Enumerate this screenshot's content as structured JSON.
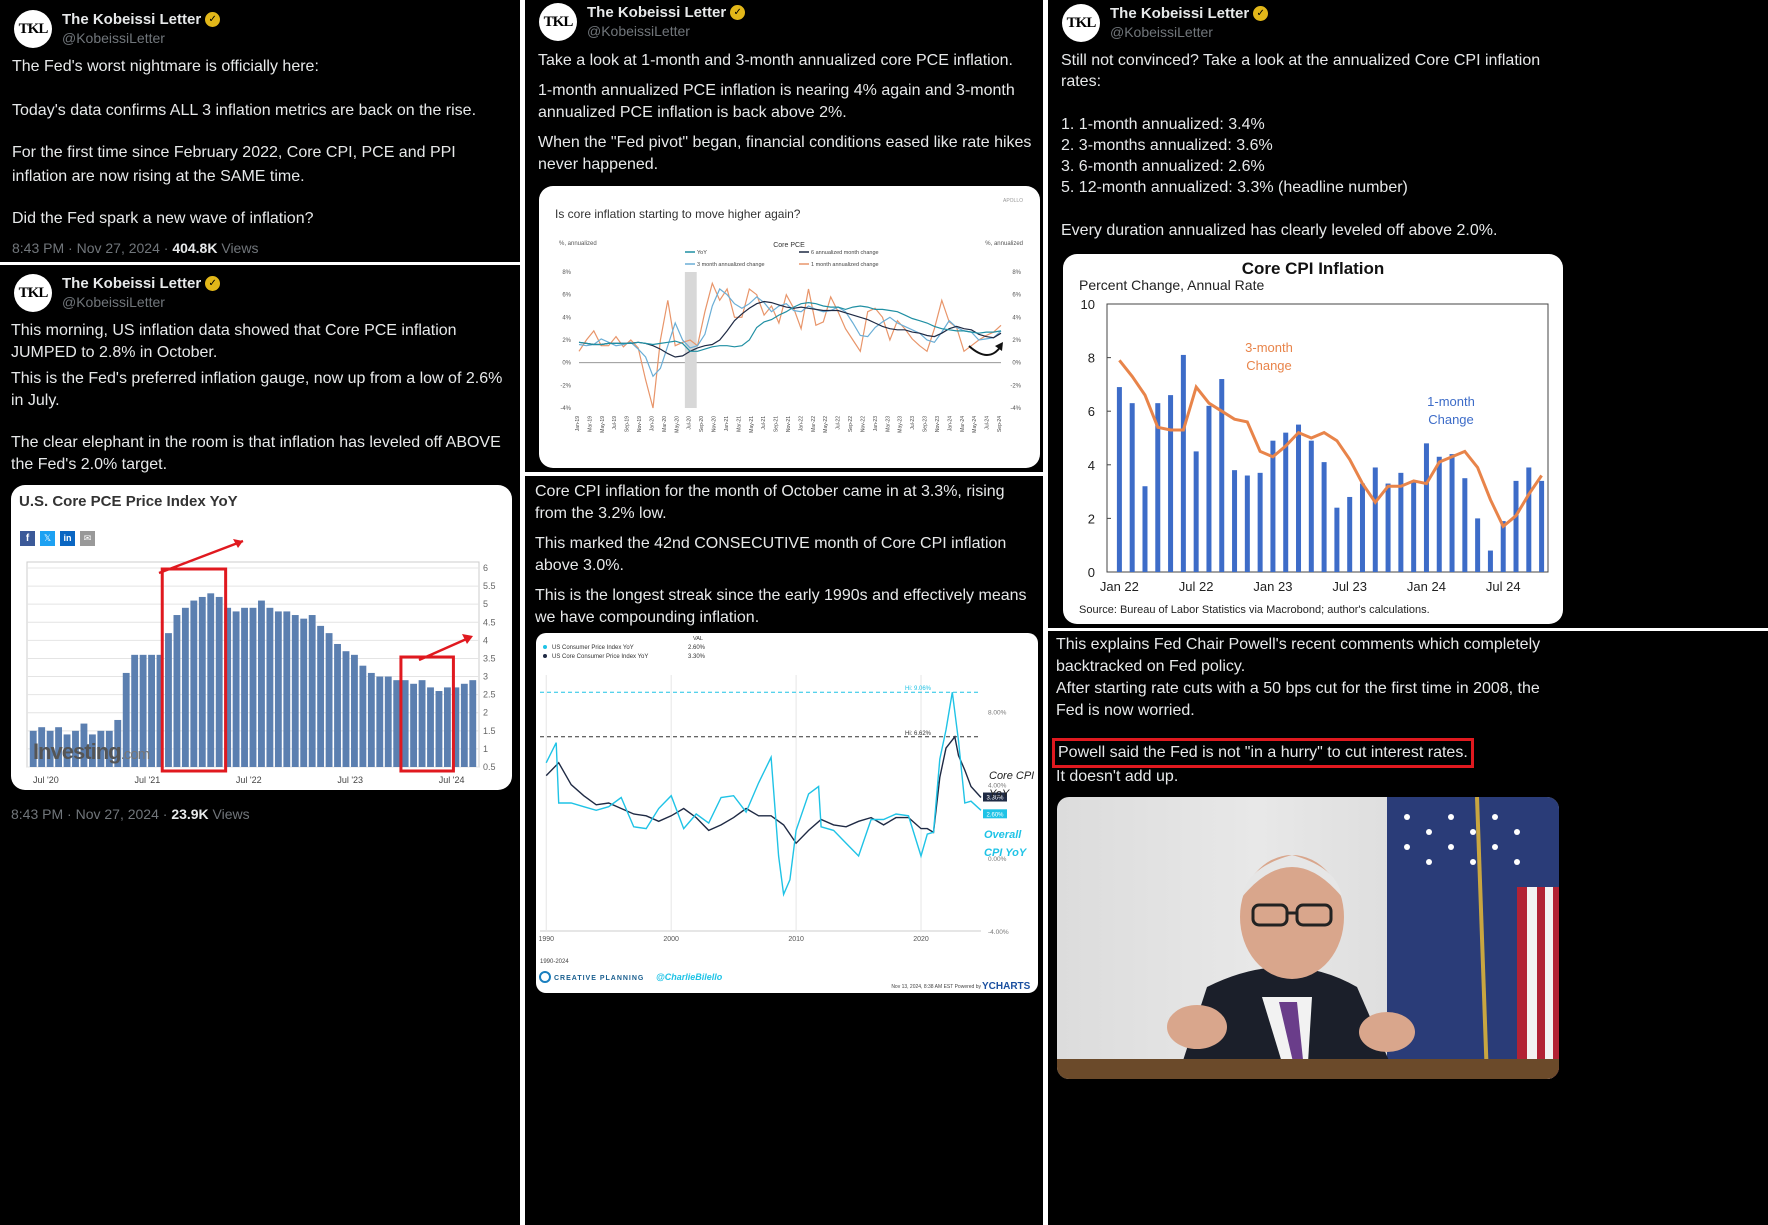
{
  "account": {
    "name": "The Kobeissi Letter",
    "handle": "@KobeissiLetter",
    "avatar_text": "TKL"
  },
  "post1": {
    "lines": [
      "The Fed's worst nightmare is officially here:",
      "Today's data confirms ALL 3 inflation metrics are back on the rise.",
      "For the first time since February 2022, Core CPI, PCE and PPI inflation are now rising at the SAME time.",
      "Did the Fed spark a new wave of inflation?"
    ],
    "timestamp": "8:43 PM · Nov 27, 2024 · ",
    "views_count": "404.8K",
    "views_label": " Views"
  },
  "post2": {
    "lines": [
      "This morning, US inflation data showed that Core PCE inflation JUMPED to 2.8% in October.",
      "This is the Fed's preferred inflation gauge, now up from a low of 2.6% in July.",
      "The clear elephant in the room is that inflation has leveled off ABOVE the Fed's 2.0% target."
    ],
    "timestamp": "8:43 PM · Nov 27, 2024 · ",
    "views_count": "23.9K",
    "views_label": " Views"
  },
  "post3": {
    "lines": [
      "Take a look at 1-month and 3-month annualized core PCE inflation.",
      "1-month annualized PCE inflation is nearing 4% again and 3-month annualized PCE inflation is back above 2%.",
      "When the \"Fed pivot\" began, financial conditions eased like rate hikes never happened."
    ]
  },
  "post4": {
    "lines": [
      "Core CPI inflation for the month of October came in at 3.3%, rising from the 3.2% low.",
      "This marked the 42nd CONSECUTIVE month of Core CPI inflation above 3.0%.",
      "This is the longest streak since the early 1990s and effectively means we have compounding inflation."
    ]
  },
  "post5": {
    "intro": "Still not convinced? Take a look at the annualized Core CPI inflation rates:",
    "list": [
      "1. 1-month annualized: 3.4%",
      "2. 3-months annualized: 3.6%",
      "3. 6-month annualized: 2.6%",
      "5. 12-month annualized: 3.3% (headline number)"
    ],
    "outro": "Every duration annualized has clearly leveled off above 2.0%."
  },
  "post6": {
    "lines": [
      "This explains Fed Chair Powell's recent comments which completely backtracked on Fed policy.",
      "After starting rate cuts with a 50 bps cut for the first time in 2008, the Fed is now worried."
    ],
    "highlight": "Powell said the Fed is not \"in a hurry\" to cut interest rates.",
    "after": "It doesn't add up."
  },
  "colors": {
    "pce_bar": "#5b7fb0",
    "cpi_bar": "#3d6cc8",
    "cpi_line": "#e8844a",
    "red": "#e0191f",
    "cyan": "#1fc3e6",
    "navy": "#1f2a44"
  },
  "chart_data": [
    {
      "id": "pce_yoy",
      "type": "bar",
      "title": "U.S. Core PCE Price Index YoY",
      "share_icons": [
        "f",
        "𝕏",
        "in",
        "✉"
      ],
      "watermark": "Investing",
      "watermark_suffix": ".com",
      "x_ticks": [
        "Jul '20",
        "Jul '21",
        "Jul '22",
        "Jul '23",
        "Jul '24"
      ],
      "y_ticks": [
        "6",
        "5.5",
        "5",
        "4.5",
        "4",
        "3.5",
        "3",
        "2.5",
        "2",
        "1.5",
        "1",
        "0.5"
      ],
      "ylim": [
        0.5,
        6
      ],
      "values": [
        1.5,
        1.6,
        1.5,
        1.6,
        1.4,
        1.5,
        1.7,
        1.4,
        1.5,
        1.5,
        1.8,
        3.1,
        3.6,
        3.6,
        3.6,
        3.6,
        4.2,
        4.7,
        4.9,
        5.1,
        5.2,
        5.3,
        5.2,
        4.9,
        4.8,
        4.9,
        4.9,
        5.1,
        4.9,
        4.8,
        4.8,
        4.7,
        4.6,
        4.7,
        4.4,
        4.2,
        3.9,
        3.7,
        3.6,
        3.3,
        3.1,
        3.0,
        3.0,
        2.9,
        2.9,
        2.8,
        2.9,
        2.7,
        2.6,
        2.7,
        2.7,
        2.8,
        2.9
      ],
      "annotations": [
        "red-arrow",
        "red-box-peak",
        "red-arrow",
        "red-box-recent"
      ]
    },
    {
      "id": "apollo_core_pce",
      "type": "line",
      "title": "Is core inflation starting to move higher again?",
      "brand": "APOLLO",
      "chart_label": "Core PCE",
      "ylabel_left": "%, annualized",
      "ylabel_right": "%, annualized",
      "y_ticks": [
        "8%",
        "6%",
        "4%",
        "2%",
        "0%",
        "-2%",
        "-4%"
      ],
      "ylim": [
        -4,
        8
      ],
      "legend": [
        "YoY",
        "6 annualized month change",
        "3 month annualized change",
        "1 month annualized change"
      ],
      "x_ticks": [
        "Jan-19",
        "Mar-19",
        "May-19",
        "Jul-19",
        "Sep-19",
        "Nov-19",
        "Jan-20",
        "Mar-20",
        "May-20",
        "Jul-20",
        "Sep-20",
        "Nov-20",
        "Jan-21",
        "Mar-21",
        "May-21",
        "Jul-21",
        "Sep-21",
        "Nov-21",
        "Jan-22",
        "Mar-22",
        "May-22",
        "Jul-22",
        "Sep-22",
        "Nov-22",
        "Jan-23",
        "Mar-23",
        "May-23",
        "Jul-23",
        "Sep-23",
        "Nov-23",
        "Jan-24",
        "Mar-24",
        "May-24",
        "Jul-24",
        "Sep-24"
      ],
      "series": [
        {
          "name": "YoY",
          "values": [
            1.8,
            1.7,
            1.6,
            1.6,
            1.7,
            1.7,
            1.7,
            1.7,
            1.8,
            1.7,
            1.6,
            1.7,
            1.8,
            1.9,
            1.7,
            1.0,
            1.0,
            1.2,
            1.4,
            1.5,
            1.5,
            1.4,
            1.5,
            2.0,
            3.1,
            3.6,
            3.8,
            4.2,
            4.5,
            4.9,
            5.2,
            5.3,
            5.2,
            5.0,
            4.9,
            4.9,
            4.7,
            4.9,
            5.0,
            4.9,
            4.7,
            4.7,
            4.6,
            4.5,
            4.2,
            3.9,
            3.7,
            3.5,
            3.2,
            3.0,
            2.9,
            2.8,
            2.8,
            2.7,
            2.6,
            2.7,
            2.7,
            2.8
          ]
        },
        {
          "name": "6 annualized month change",
          "values": [
            1.8,
            1.7,
            1.6,
            1.6,
            1.7,
            1.7,
            1.7,
            1.7,
            1.8,
            1.7,
            1.5,
            1.2,
            0.8,
            0.5,
            0.6,
            1.0,
            1.3,
            1.5,
            1.6,
            2.0,
            2.8,
            3.7,
            4.3,
            4.8,
            5.2,
            5.4,
            5.3,
            5.1,
            4.9,
            4.8,
            4.9,
            4.8,
            4.7,
            4.6,
            4.6,
            4.6,
            4.4,
            4.2,
            4.0,
            3.8,
            3.5,
            3.2,
            3.0,
            2.9,
            2.9,
            2.7,
            2.6,
            2.4,
            2.3,
            2.6,
            3.0,
            3.2,
            3.0,
            2.9,
            2.5,
            2.3,
            2.2,
            2.6
          ]
        },
        {
          "name": "3 month annualized change",
          "values": [
            1.6,
            1.5,
            1.6,
            2.1,
            1.8,
            1.5,
            1.6,
            1.8,
            1.2,
            0.5,
            -1.2,
            -0.5,
            1.5,
            3.5,
            2.0,
            1.3,
            1.5,
            2.5,
            5.0,
            6.5,
            6.0,
            5.2,
            4.8,
            5.2,
            5.8,
            5.3,
            4.5,
            5.0,
            5.2,
            4.6,
            4.5,
            5.0,
            4.7,
            4.5,
            4.6,
            4.9,
            4.5,
            3.5,
            2.4,
            2.3,
            3.1,
            3.6,
            4.0,
            3.5,
            3.2,
            2.9,
            2.6,
            2.0,
            1.8,
            2.7,
            3.7,
            3.1,
            2.8,
            2.7,
            2.0,
            2.1,
            2.2,
            2.8
          ]
        },
        {
          "name": "1 month annualized change",
          "values": [
            1.0,
            2.0,
            2.8,
            1.5,
            1.5,
            2.3,
            1.4,
            2.0,
            1.3,
            -1.5,
            -4.0,
            2.0,
            5.5,
            1.5,
            1.8,
            2.0,
            1.5,
            4.5,
            7.0,
            5.5,
            6.5,
            4.0,
            4.0,
            6.5,
            6.0,
            4.2,
            5.0,
            3.5,
            6.0,
            4.8,
            3.0,
            6.5,
            3.3,
            3.6,
            5.8,
            4.5,
            3.0,
            2.0,
            1.0,
            4.5,
            4.8,
            4.0,
            2.0,
            3.7,
            3.0,
            2.1,
            1.5,
            1.0,
            3.0,
            5.5,
            3.6,
            3.1,
            1.0,
            1.5,
            2.0,
            2.4,
            2.7,
            3.3
          ]
        }
      ]
    },
    {
      "id": "ycharts_cpi",
      "type": "line",
      "legend_header": "VAL",
      "legend": [
        {
          "name": "US Consumer Price Index YoY",
          "value": "2.60%"
        },
        {
          "name": "US Core Consumer Price Index YoY",
          "value": "3.30%"
        }
      ],
      "x_ticks": [
        "1990",
        "2000",
        "2010",
        "2020"
      ],
      "y_ticks": [
        "8.00%",
        "4.00%",
        "0.00%",
        "-4.00%"
      ],
      "ylim": [
        -4,
        10
      ],
      "ref_lines": [
        {
          "label": "Hi: 9.06%",
          "value": 9.06
        },
        {
          "label": "Hi: 6.62%",
          "value": 6.62
        }
      ],
      "end_labels": [
        {
          "text": "3.30%",
          "value": 3.3
        },
        {
          "text": "2.60%",
          "value": 2.6
        }
      ],
      "annot_core": [
        "Core CPI",
        "YoY"
      ],
      "annot_overall": [
        "Overall",
        "CPI YoY"
      ],
      "period": "1990-2024",
      "footer_brand": "CREATIVE PLANNING",
      "footer_handle": "@CharlieBilello",
      "footer_stamp": "Nov 13, 2024, 8:38 AM EST Powered by ",
      "footer_ycharts": "YCHARTS",
      "xrange": [
        1989.5,
        2024.8
      ],
      "series": [
        {
          "name": "US Core Consumer Price Index YoY",
          "x": [
            1990,
            1991,
            1992,
            1993,
            1994,
            1995,
            1996,
            1997,
            1998,
            1999,
            2000,
            2001,
            2002,
            2003,
            2004,
            2005,
            2006,
            2007,
            2008,
            2009,
            2010,
            2011,
            2012,
            2013,
            2014,
            2015,
            2016,
            2017,
            2018,
            2019,
            2020,
            2020.5,
            2021,
            2021.5,
            2022,
            2022.7,
            2023,
            2023.5,
            2024,
            2024.8
          ],
          "values": [
            4.5,
            5.2,
            4.0,
            3.4,
            2.9,
            3.0,
            2.7,
            2.4,
            2.3,
            2.0,
            2.3,
            2.7,
            2.2,
            1.5,
            1.8,
            2.2,
            2.7,
            2.3,
            2.3,
            1.8,
            0.8,
            1.5,
            2.1,
            1.8,
            1.7,
            2.0,
            2.2,
            1.8,
            2.2,
            2.2,
            1.6,
            1.6,
            1.4,
            4.4,
            6.0,
            6.62,
            5.6,
            4.8,
            3.9,
            3.3
          ]
        },
        {
          "name": "US Consumer Price Index YoY",
          "x": [
            1990,
            1990.8,
            1991,
            1992,
            1993,
            1994,
            1995,
            1996,
            1997,
            1998,
            1999,
            2000,
            2001,
            2002,
            2003,
            2004,
            2005,
            2006,
            2007,
            2008,
            2008.6,
            2009,
            2009.5,
            2010,
            2011,
            2011.8,
            2012,
            2013,
            2014,
            2015,
            2016,
            2017,
            2018,
            2019,
            2020,
            2020.5,
            2021,
            2021.5,
            2022,
            2022.5,
            2023,
            2023.5,
            2024,
            2024.8
          ],
          "values": [
            5.2,
            6.3,
            3.0,
            3.0,
            2.8,
            2.6,
            2.8,
            3.3,
            1.7,
            1.6,
            2.7,
            3.4,
            1.6,
            2.4,
            1.9,
            3.3,
            3.4,
            2.5,
            4.1,
            5.5,
            0.1,
            -2.0,
            -1.2,
            1.5,
            3.5,
            3.9,
            1.7,
            1.5,
            0.8,
            0.1,
            2.1,
            2.1,
            2.4,
            2.3,
            0.1,
            1.3,
            1.4,
            5.4,
            7.0,
            9.06,
            6.4,
            3.0,
            3.1,
            2.6
          ]
        }
      ]
    },
    {
      "id": "core_cpi_mom",
      "type": "bar",
      "title": "Core CPI Inflation",
      "subtitle": "Percent Change, Annual Rate",
      "source": "Source: Bureau of Labor Statistics via Macrobond; author's calculations.",
      "x_ticks": [
        "Jan 22",
        "Jul 22",
        "Jan 23",
        "Jul 23",
        "Jan 24",
        "Jul 24"
      ],
      "y_ticks": [
        "10",
        "8",
        "6",
        "4",
        "2",
        "0"
      ],
      "ylim": [
        0,
        10
      ],
      "label_3m": [
        "3-month",
        "Change"
      ],
      "label_1m": [
        "1-month",
        "Change"
      ],
      "series": [
        {
          "name": "1-month Change",
          "values": [
            6.9,
            6.3,
            3.2,
            6.3,
            6.6,
            8.1,
            4.5,
            6.2,
            7.2,
            3.8,
            3.6,
            3.7,
            4.9,
            5.2,
            5.5,
            4.9,
            4.1,
            2.4,
            2.8,
            3.3,
            3.9,
            3.3,
            3.7,
            3.4,
            4.8,
            4.3,
            4.4,
            3.5,
            2.0,
            0.8,
            1.9,
            3.4,
            3.9,
            3.4
          ]
        },
        {
          "name": "3-month Change",
          "values": [
            7.9,
            7.3,
            6.6,
            5.4,
            5.3,
            5.3,
            6.9,
            6.3,
            6.0,
            5.7,
            5.6,
            4.5,
            4.3,
            4.7,
            5.2,
            5.0,
            5.2,
            4.9,
            4.2,
            3.3,
            2.6,
            3.2,
            3.2,
            3.4,
            3.3,
            4.1,
            4.3,
            4.5,
            3.9,
            2.7,
            1.7,
            2.1,
            2.9,
            3.6
          ]
        }
      ]
    }
  ]
}
